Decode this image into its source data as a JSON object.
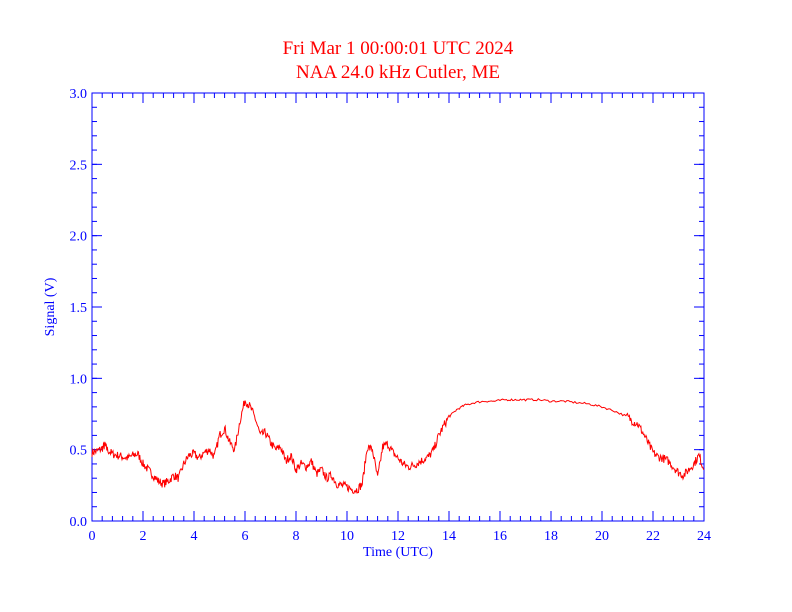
{
  "colors": {
    "axis": "#0000ff",
    "series": "#ff0000",
    "title": "#ff0000",
    "background": "#ffffff"
  },
  "chart_data": {
    "type": "line",
    "title": "Fri Mar 1 00:00:01 UTC 2024",
    "subtitle": "NAA 24.0 kHz Cutler, ME",
    "xlabel": "Time (UTC)",
    "ylabel": "Signal (V)",
    "xlim": [
      0,
      24
    ],
    "ylim": [
      0,
      3.0
    ],
    "x_ticks": [
      0,
      2,
      4,
      6,
      8,
      10,
      12,
      14,
      16,
      18,
      20,
      22,
      24
    ],
    "x_tick_labels": [
      "0",
      "2",
      "4",
      "6",
      "8",
      "10",
      "12",
      "14",
      "16",
      "18",
      "20",
      "22",
      "24"
    ],
    "y_ticks": [
      0,
      0.5,
      1.0,
      1.5,
      2.0,
      2.5,
      3.0
    ],
    "y_tick_labels": [
      "0.0",
      "0.5",
      "1.0",
      "1.5",
      "2.0",
      "2.5",
      "3.0"
    ],
    "grid": false,
    "legend": "none",
    "series": [
      {
        "x": [
          0,
          0.2,
          0.4,
          0.5,
          0.6,
          0.8,
          1.0,
          1.2,
          1.4,
          1.6,
          1.8,
          2.0,
          2.2,
          2.4,
          2.6,
          2.8,
          3.0,
          3.2,
          3.4,
          3.6,
          3.8,
          4.0,
          4.2,
          4.4,
          4.6,
          4.8,
          5.0,
          5.2,
          5.4,
          5.6,
          5.8,
          6.0,
          6.2,
          6.4,
          6.6,
          6.8,
          7.0,
          7.2,
          7.4,
          7.6,
          7.8,
          8.0,
          8.2,
          8.4,
          8.6,
          8.8,
          9.0,
          9.2,
          9.4,
          9.6,
          9.8,
          10.0,
          10.2,
          10.4,
          10.6,
          10.8,
          11.0,
          11.2,
          11.4,
          11.6,
          11.8,
          12.0,
          12.2,
          12.4,
          12.6,
          12.8,
          13.0,
          13.2,
          13.4,
          13.6,
          13.8,
          14.0,
          14.3,
          14.6,
          15.0,
          15.4,
          15.8,
          16.2,
          16.6,
          17.0,
          17.5,
          18.0,
          18.5,
          19.0,
          19.5,
          20.0,
          20.5,
          21.0,
          21.2,
          21.4,
          21.6,
          21.8,
          22.0,
          22.2,
          22.4,
          22.6,
          22.8,
          23.0,
          23.2,
          23.4,
          23.6,
          23.8,
          24.0
        ],
        "y": [
          0.48,
          0.49,
          0.51,
          0.53,
          0.5,
          0.47,
          0.46,
          0.45,
          0.44,
          0.46,
          0.47,
          0.4,
          0.36,
          0.32,
          0.28,
          0.26,
          0.28,
          0.32,
          0.3,
          0.4,
          0.46,
          0.47,
          0.44,
          0.48,
          0.5,
          0.45,
          0.6,
          0.65,
          0.55,
          0.5,
          0.7,
          0.85,
          0.8,
          0.72,
          0.6,
          0.62,
          0.55,
          0.5,
          0.52,
          0.42,
          0.46,
          0.36,
          0.4,
          0.38,
          0.42,
          0.33,
          0.36,
          0.3,
          0.32,
          0.26,
          0.25,
          0.24,
          0.22,
          0.22,
          0.26,
          0.52,
          0.5,
          0.3,
          0.52,
          0.54,
          0.48,
          0.44,
          0.4,
          0.38,
          0.39,
          0.41,
          0.43,
          0.45,
          0.5,
          0.6,
          0.67,
          0.73,
          0.78,
          0.81,
          0.83,
          0.84,
          0.84,
          0.85,
          0.85,
          0.85,
          0.85,
          0.84,
          0.84,
          0.83,
          0.82,
          0.8,
          0.77,
          0.73,
          0.7,
          0.68,
          0.62,
          0.55,
          0.48,
          0.45,
          0.44,
          0.42,
          0.38,
          0.34,
          0.32,
          0.36,
          0.4,
          0.46,
          0.36
        ]
      }
    ]
  }
}
